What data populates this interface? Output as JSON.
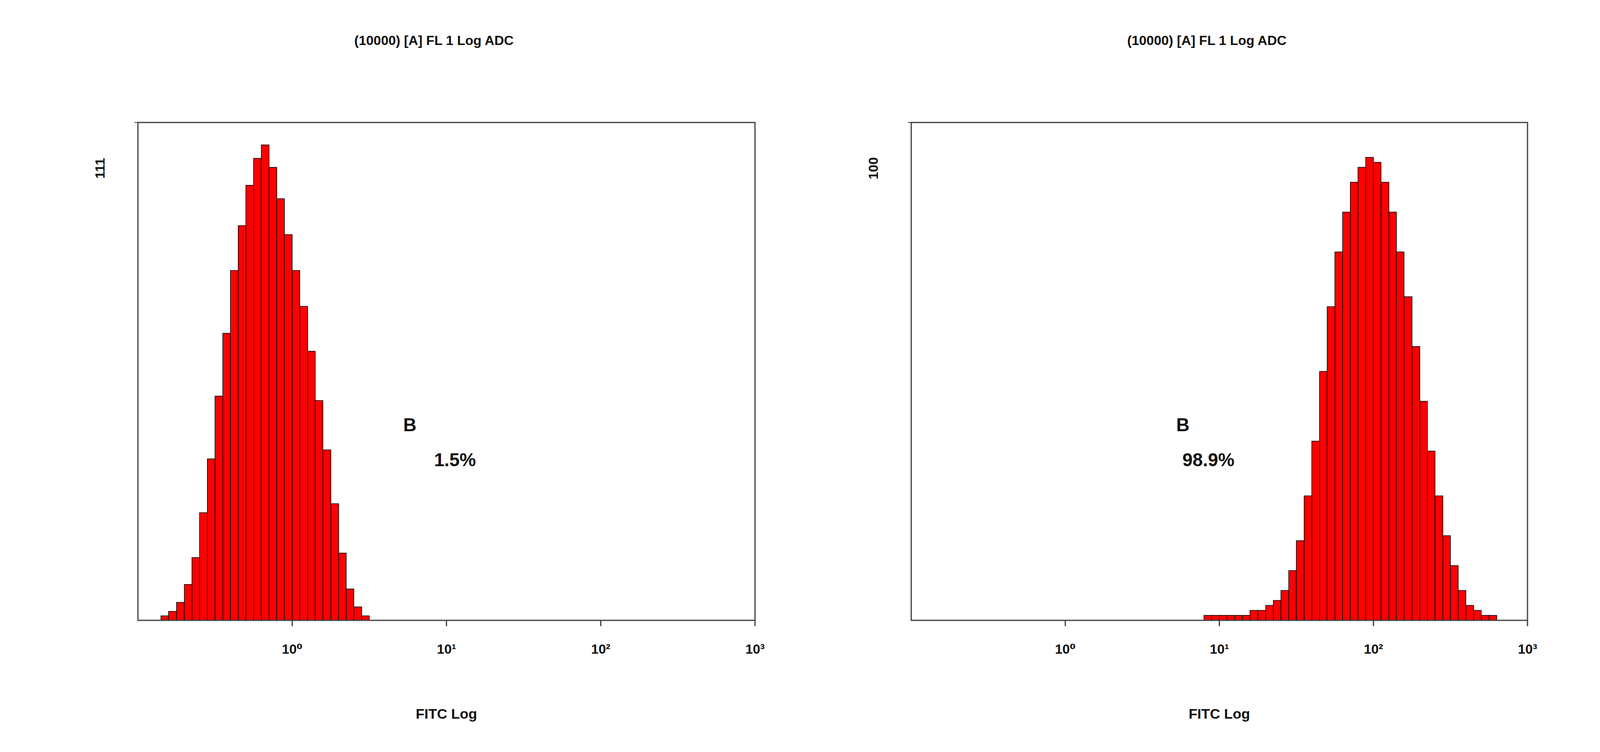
{
  "chart_data": [
    {
      "type": "histogram",
      "title": "(10000) [A] FL 1 Log  ADC",
      "x_label": "FITC Log",
      "log": "x",
      "color": "#ff0000",
      "bins": [
        0.1,
        0.112,
        0.126,
        0.141,
        0.158,
        0.178,
        0.2,
        0.224,
        0.251,
        0.282,
        0.316,
        0.355,
        0.398,
        0.447,
        0.501,
        0.562,
        0.631,
        0.708,
        0.794,
        0.891,
        1,
        1.12,
        1.26,
        1.41,
        1.58,
        1.78,
        2,
        2.24,
        2.51,
        2.82,
        3.16,
        3.55,
        3.98,
        4.47,
        5.01,
        5.62,
        6.31,
        7.08,
        7.94,
        8.91,
        10,
        11.2,
        12.6,
        14.1,
        15.8,
        17.8,
        20,
        22.4,
        25.1,
        28.2,
        31.6,
        35.5,
        39.8,
        44.7,
        50.1,
        56.2,
        63.1,
        70.8,
        79.4,
        89.1,
        100,
        112,
        126,
        141,
        158,
        178,
        200,
        224,
        251,
        282,
        316,
        355,
        398,
        447,
        501,
        562,
        631,
        708,
        794,
        891,
        1000
      ],
      "values": [
        0,
        0,
        0,
        1,
        2,
        4,
        8,
        14,
        24,
        36,
        50,
        64,
        78,
        88,
        97,
        103,
        106,
        101,
        94,
        86,
        78,
        70,
        60,
        49,
        38,
        26,
        15,
        7,
        3,
        1,
        0,
        0,
        0,
        0,
        0,
        0,
        0,
        0,
        0,
        0,
        0,
        0,
        0,
        0,
        0,
        0,
        0,
        0,
        0,
        0,
        0,
        0,
        0,
        0,
        0,
        0,
        0,
        0,
        0,
        0,
        0,
        0,
        0,
        0,
        0,
        0,
        0,
        0,
        0,
        0,
        0,
        0,
        0,
        0,
        0,
        0,
        0,
        0,
        0,
        0
      ],
      "xlim": [
        0.1,
        1000
      ],
      "xticks": [
        {
          "value": 1,
          "label": "10⁰"
        },
        {
          "value": 10,
          "label": "10¹"
        },
        {
          "value": 100,
          "label": "10²"
        },
        {
          "value": 1000,
          "label": "10³"
        }
      ],
      "ylim": [
        0,
        111
      ],
      "yticks": [
        111
      ],
      "annotations": [
        {
          "text": "B"
        },
        {
          "text": "1.5%"
        }
      ]
    },
    {
      "type": "histogram",
      "title": "(10000) [A] FL 1 Log  ADC",
      "x_label": "FITC Log",
      "log": "x",
      "color": "#ff0000",
      "bins": [
        0.1,
        0.112,
        0.126,
        0.141,
        0.158,
        0.178,
        0.2,
        0.224,
        0.251,
        0.282,
        0.316,
        0.355,
        0.398,
        0.447,
        0.501,
        0.562,
        0.631,
        0.708,
        0.794,
        0.891,
        1,
        1.12,
        1.26,
        1.41,
        1.58,
        1.78,
        2,
        2.24,
        2.51,
        2.82,
        3.16,
        3.55,
        3.98,
        4.47,
        5.01,
        5.62,
        6.31,
        7.08,
        7.94,
        8.91,
        10,
        11.2,
        12.6,
        14.1,
        15.8,
        17.8,
        20,
        22.4,
        25.1,
        28.2,
        31.6,
        35.5,
        39.8,
        44.7,
        50.1,
        56.2,
        63.1,
        70.8,
        79.4,
        89.1,
        100,
        112,
        126,
        141,
        158,
        178,
        200,
        224,
        251,
        282,
        316,
        355,
        398,
        447,
        501,
        562,
        631,
        708,
        794,
        891,
        1000
      ],
      "values": [
        0,
        0,
        0,
        0,
        0,
        0,
        0,
        0,
        0,
        0,
        0,
        0,
        0,
        0,
        0,
        0,
        0,
        0,
        0,
        0,
        0,
        0,
        0,
        0,
        0,
        0,
        0,
        0,
        0,
        0,
        0,
        0,
        0,
        0,
        0,
        0,
        0,
        0,
        1,
        1,
        1,
        1,
        1,
        1,
        2,
        2,
        3,
        4,
        6,
        10,
        16,
        25,
        36,
        50,
        63,
        74,
        82,
        88,
        91,
        93,
        92,
        88,
        82,
        74,
        65,
        55,
        44,
        34,
        25,
        17,
        11,
        6,
        3,
        2,
        1,
        1,
        0,
        0,
        0,
        0
      ],
      "xlim": [
        0.1,
        1000
      ],
      "xticks": [
        {
          "value": 1,
          "label": "10⁰"
        },
        {
          "value": 10,
          "label": "10¹"
        },
        {
          "value": 100,
          "label": "10²"
        },
        {
          "value": 1000,
          "label": "10³"
        }
      ],
      "ylim": [
        0,
        100
      ],
      "yticks": [
        100
      ],
      "annotations": [
        {
          "text": "B"
        },
        {
          "text": "98.9%"
        }
      ]
    }
  ]
}
